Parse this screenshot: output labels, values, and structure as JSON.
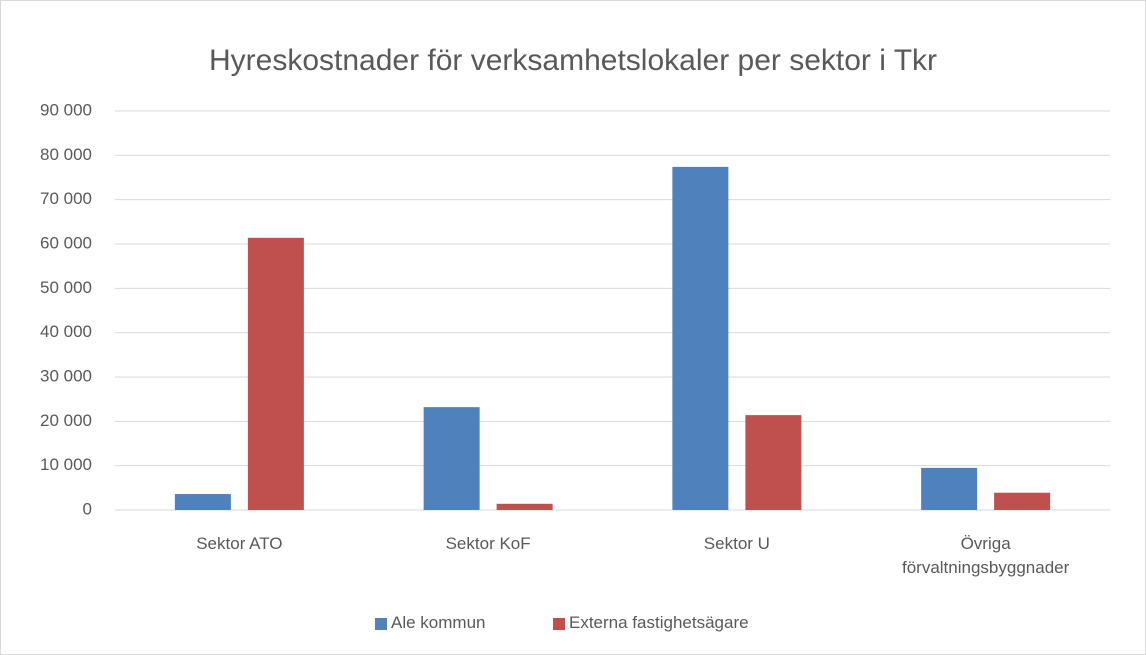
{
  "chart_data": {
    "type": "bar",
    "title": "Hyreskostnader för verksamhetslokaler per sektor i Tkr",
    "categories": [
      "Sektor ATO",
      "Sektor KoF",
      "Sektor U",
      "Övriga förvaltningsbyggnader"
    ],
    "series": [
      {
        "name": "Ale kommun",
        "color": "#4f81bd",
        "values": [
          3600,
          23200,
          77400,
          9500
        ]
      },
      {
        "name": "Externa fastighetsägare",
        "color": "#c0504d",
        "values": [
          61400,
          1400,
          21400,
          3900
        ]
      }
    ],
    "ylim": [
      0,
      90000
    ],
    "yticks": [
      0,
      {
        "value": 10000,
        "label": "10 000"
      },
      {
        "value": 20000,
        "label": "20 000"
      },
      {
        "value": 30000,
        "label": "30 000"
      },
      {
        "value": 40000,
        "label": "40 000"
      },
      {
        "value": 50000,
        "label": "50 000"
      },
      {
        "value": 60000,
        "label": "60 000"
      },
      {
        "value": 70000,
        "label": "70 000"
      },
      {
        "value": 80000,
        "label": "80 000"
      },
      {
        "value": 90000,
        "label": "90 000"
      }
    ],
    "grid": true,
    "legend": "bottom"
  }
}
